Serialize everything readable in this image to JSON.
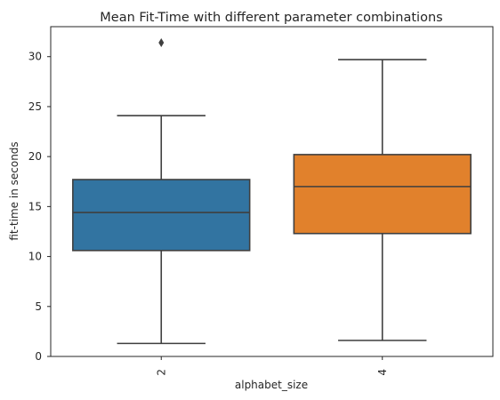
{
  "chart_data": {
    "type": "box",
    "title": "Mean Fit-Time with different parameter combinations",
    "xlabel": "alphabet_size",
    "ylabel": "fit-time in seconds",
    "ylim": [
      0,
      33
    ],
    "yticks": [
      0,
      5,
      10,
      15,
      20,
      25,
      30
    ],
    "grid": false,
    "categories": [
      "2",
      "4"
    ],
    "colors": [
      "#3274a1",
      "#e1812c"
    ],
    "boxes": [
      {
        "category": "2",
        "whisker_low": 1.3,
        "q1": 10.6,
        "median": 14.4,
        "q3": 17.7,
        "whisker_high": 24.1,
        "outliers": [
          31.4
        ]
      },
      {
        "category": "4",
        "whisker_low": 1.6,
        "q1": 12.3,
        "median": 17.0,
        "q3": 20.2,
        "whisker_high": 29.7,
        "outliers": []
      }
    ]
  }
}
